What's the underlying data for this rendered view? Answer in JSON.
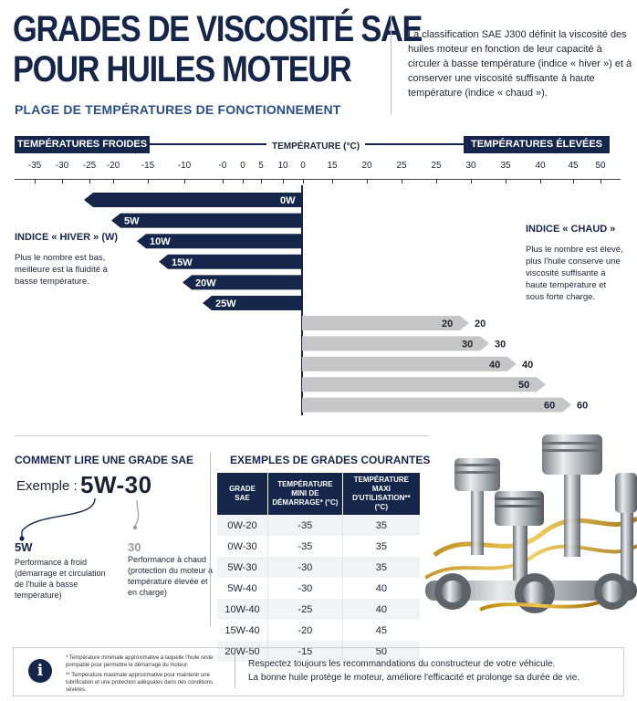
{
  "header": {
    "title_line1": "GRADES DE VISCOSITÉ SAE",
    "title_line2": "POUR HUILES MOTEUR",
    "subtitle": "PLAGE DE TEMPÉRATURES DE FONCTIONNEMENT",
    "intro": "La classification SAE J300 définit la viscosité des huiles moteur en fonction de leur capacité à circuler à basse température (indice « hiver ») et à conserver une viscosité suffisante à haute température (indice « chaud »)."
  },
  "axis": {
    "cold_label": "TEMPÉRATURES FROIDES",
    "center_label": "TEMPÉRATURE (°C)",
    "hot_label": "TEMPÉRATURES ÉLEVÉES",
    "ticks": [
      "-35",
      "-30",
      "-25",
      "-20",
      "-15",
      "-10",
      "-0",
      "0",
      "5",
      "10",
      "0",
      "15",
      "20",
      "25",
      "25",
      "30",
      "35",
      "40",
      "45",
      "50"
    ]
  },
  "winter": {
    "title": "INDICE « HIVER » (W)",
    "text": "Plus le nombre est bas, meilleure est la fluidité à basse température.",
    "bars": [
      {
        "label": "0W",
        "value": -35
      },
      {
        "label": "5W",
        "value": -30
      },
      {
        "label": "10W",
        "value": -25
      },
      {
        "label": "15W",
        "value": -20
      },
      {
        "label": "20W",
        "value": -15
      },
      {
        "label": "25W",
        "value": -10
      }
    ]
  },
  "hot": {
    "title": "INDICE « CHAUD »",
    "text": "Plus le nombre est élevé, plus l'huile conserve une viscosité suffisante à haute température et sous forte charge.",
    "bars": [
      {
        "label": "20",
        "value": 20,
        "outside": "20"
      },
      {
        "label": "30",
        "value": 30,
        "outside": "30"
      },
      {
        "label": "40",
        "value": 40,
        "outside": "40"
      },
      {
        "label": "50",
        "value": 50,
        "outside": ""
      },
      {
        "label": "60",
        "value": 60,
        "outside": "60"
      }
    ]
  },
  "howto": {
    "title": "COMMENT LIRE UNE GRADE SAE",
    "example_label": "Exemple :",
    "example_value": "5W-30",
    "cold_code": "5W",
    "cold_text": "Performance à froid (démarrage et circulation de l'huile à basse température)",
    "hot_code": "30",
    "hot_text": "Performance à chaud (protection du moteur à température élevée et en charge)"
  },
  "examples": {
    "title": "EXEMPLES DE GRADES COURANTES",
    "headers": [
      "GRADE SAE",
      "TEMPÉRATURE MINI DE DÉMARRAGE* (°C)",
      "TEMPÉRATURE MAXI D'UTILISATION** (°C)"
    ],
    "rows": [
      [
        "0W-20",
        "-35",
        "35"
      ],
      [
        "0W-30",
        "-35",
        "35"
      ],
      [
        "5W-30",
        "-30",
        "35"
      ],
      [
        "5W-40",
        "-30",
        "40"
      ],
      [
        "10W-40",
        "-25",
        "40"
      ],
      [
        "15W-40",
        "-20",
        "45"
      ],
      [
        "20W-50",
        "-15",
        "50"
      ]
    ]
  },
  "footer": {
    "note1": "* Température minimale approximative à laquelle l'huile reste pompable pour permettre le démarrage du moteur.",
    "note2": "** Température maximale approximative pour maintenir une lubrification et une protection adéquates dans des conditions sévères.",
    "line1": "Respectez toujours les recommandations du constructeur de votre véhicule.",
    "line2": "La bonne huile protège le moteur, améliore l'efficacité et prolonge sa durée de vie."
  },
  "colors": {
    "navy": "#16264a",
    "gray_bar": "#c6c6c6",
    "accent": "#2b4d87"
  }
}
